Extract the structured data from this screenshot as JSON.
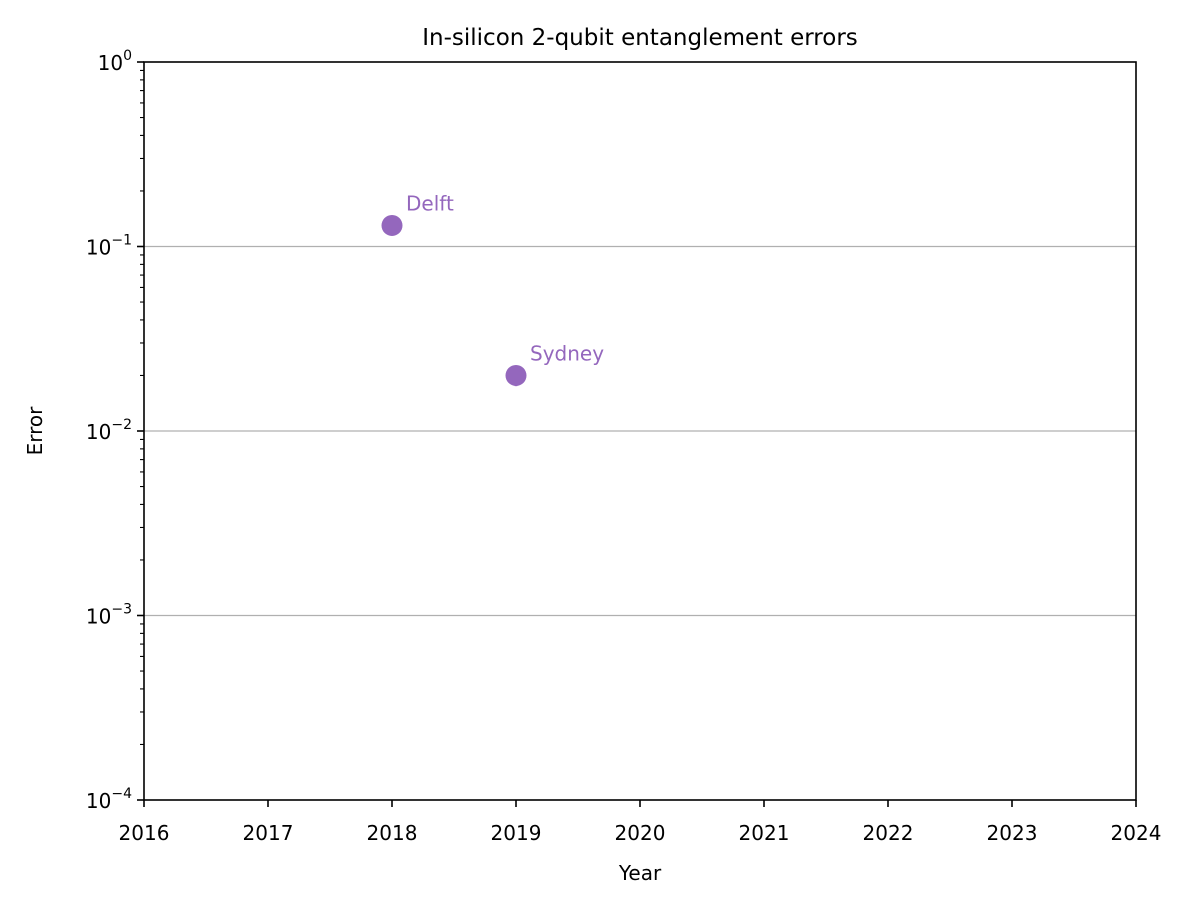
{
  "chart_data": {
    "type": "scatter",
    "title": "In-silicon 2-qubit entanglement errors",
    "xlabel": "Year",
    "ylabel": "Error",
    "xlim": [
      2016,
      2024
    ],
    "ylim": [
      0.0001,
      1
    ],
    "yscale": "log",
    "grid": "horizontal major lines at 10^-3, 10^-2, 10^-1",
    "x_ticks": [
      2016,
      2017,
      2018,
      2019,
      2020,
      2021,
      2022,
      2023,
      2024
    ],
    "x_tick_labels": [
      "2016",
      "2017",
      "2018",
      "2019",
      "2020",
      "2021",
      "2022",
      "2023",
      "2024"
    ],
    "y_ticks": [
      {
        "value": 1,
        "base": "10",
        "exp": "0"
      },
      {
        "value": 0.1,
        "base": "10",
        "exp": "−1"
      },
      {
        "value": 0.01,
        "base": "10",
        "exp": "−2"
      },
      {
        "value": 0.001,
        "base": "10",
        "exp": "−3"
      },
      {
        "value": 0.0001,
        "base": "10",
        "exp": "−4"
      }
    ],
    "points": [
      {
        "label": "Delft",
        "x": 2018,
        "y": 0.13,
        "yerr_low": 0.115
      },
      {
        "label": "Sydney",
        "x": 2019,
        "y": 0.02,
        "yerr_low": 0.0175
      }
    ],
    "colors": {
      "marker": "#9467bd",
      "label": "#9467bd",
      "grid": "#b0b0b0"
    }
  }
}
